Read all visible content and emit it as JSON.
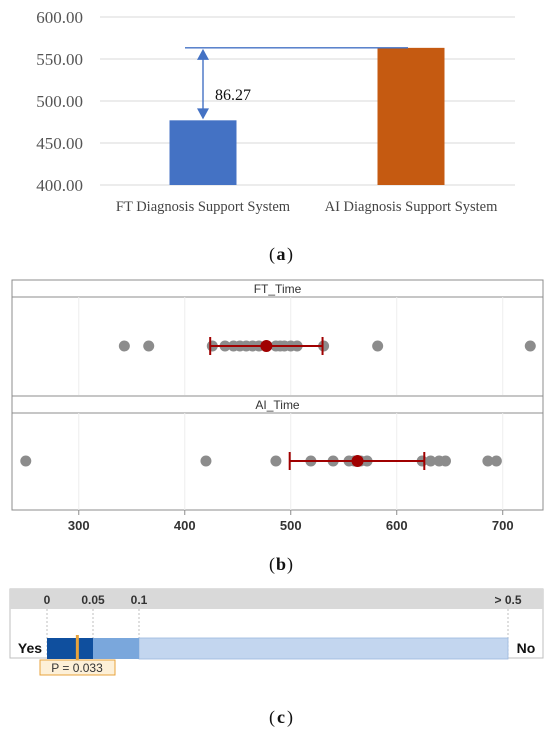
{
  "chart_data": [
    {
      "type": "bar",
      "categories": [
        "FT Diagnosis Support System",
        "AI Diagnosis Support System"
      ],
      "values": [
        477.0,
        563.27
      ],
      "ylim": [
        400,
        600
      ],
      "yticks": [
        "400.00",
        "450.00",
        "500.00",
        "550.00",
        "600.00"
      ],
      "colors": [
        "#4472c4",
        "#c55a11"
      ],
      "annotation": "86.27",
      "caption": "a"
    },
    {
      "type": "scatter",
      "panels": [
        {
          "label": "FT_Time",
          "points": [
            343,
            366,
            426,
            438,
            446,
            452,
            458,
            464,
            470,
            486,
            490,
            494,
            500,
            506,
            531,
            582,
            726
          ],
          "mean": 477,
          "ci": [
            424,
            530
          ]
        },
        {
          "label": "AI_Time",
          "points": [
            250,
            420,
            486,
            519,
            540,
            555,
            560,
            566,
            572,
            624,
            632,
            640,
            646,
            686,
            694
          ],
          "mean": 563,
          "ci": [
            499,
            626
          ]
        }
      ],
      "xticks": [
        300,
        400,
        500,
        600,
        700
      ],
      "xlim": [
        237,
        738
      ],
      "point_color": "#8c8c8c",
      "mean_color": "#a00000",
      "caption": "b"
    },
    {
      "type": "bar",
      "scale_labels": [
        "0",
        "0.05",
        "0.1",
        "> 0.5"
      ],
      "left_label": "Yes",
      "right_label": "No",
      "p_value": 0.033,
      "p_label": "P = 0.033",
      "colors": {
        "dark": "#0f4f9e",
        "mid": "#7aa7dc",
        "light": "#c3d6ef",
        "marker": "#e8a33c"
      },
      "caption": "c"
    }
  ]
}
